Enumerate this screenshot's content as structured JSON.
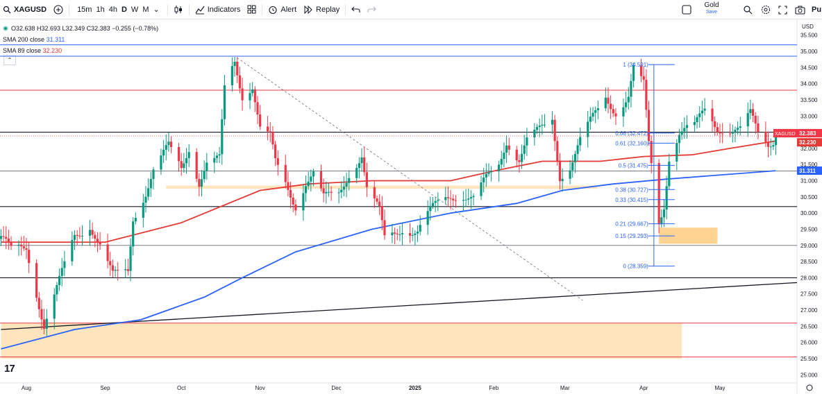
{
  "toolbar": {
    "symbol": "XAGUSD",
    "intervals": [
      "15m",
      "1h",
      "4h",
      "D",
      "W",
      "M"
    ],
    "active_interval": "D",
    "indicators_label": "Indicators",
    "alert_label": "Alert",
    "replay_label": "Replay",
    "gold_label": "Gold",
    "save_label": "Save",
    "publish_label": "Pu"
  },
  "legend": {
    "ohlc": "O32.638 H32.693 L32.349 C32.383 −0.255 (−0.78%)",
    "sma200_label": "SMA 200 close",
    "sma200_value": "31.311",
    "sma89_label": "SMA 89 close",
    "sma89_value": "32.230"
  },
  "colors": {
    "up": "#089981",
    "down": "#f23645",
    "sma200": "#2962ff",
    "sma89": "#e53935",
    "zone": "#ffe0b2",
    "zone_strong": "#ffcc80"
  },
  "chart_data": {
    "type": "candlestick",
    "symbol": "XAGUSD",
    "timeframe": "D",
    "currency_label": "USD",
    "ylim": [
      25.0,
      35.4
    ],
    "y_ticks": [
      "35.500",
      "35.000",
      "34.500",
      "34.000",
      "33.500",
      "33.000",
      "32.500",
      "32.000",
      "31.500",
      "31.000",
      "30.500",
      "30.000",
      "29.500",
      "29.000",
      "28.500",
      "28.000",
      "27.500",
      "27.000",
      "26.500",
      "26.000",
      "25.500",
      "25.000"
    ],
    "x_labels": [
      {
        "label": "Aug",
        "date": "2024-08-01"
      },
      {
        "label": "Sep",
        "date": "2024-09-01"
      },
      {
        "label": "Oct",
        "date": "2024-10-01"
      },
      {
        "label": "Nov",
        "date": "2024-11-01"
      },
      {
        "label": "Dec",
        "date": "2024-12-01"
      },
      {
        "label": "2025",
        "date": "2025-01-01"
      },
      {
        "label": "Feb",
        "date": "2025-02-01"
      },
      {
        "label": "Mar",
        "date": "2025-03-01"
      },
      {
        "label": "Apr",
        "date": "2025-04-01"
      },
      {
        "label": "May",
        "date": "2025-05-01"
      }
    ],
    "x_range": [
      "2024-07-22",
      "2025-06-07"
    ],
    "close_path": [
      [
        "2024-07-22",
        29.2
      ],
      [
        "2024-07-26",
        28.8
      ],
      [
        "2024-08-01",
        29.0
      ],
      [
        "2024-08-05",
        27.6
      ],
      [
        "2024-08-08",
        26.5
      ],
      [
        "2024-08-13",
        27.6
      ],
      [
        "2024-08-20",
        29.3
      ],
      [
        "2024-08-26",
        29.7
      ],
      [
        "2024-08-30",
        29.0
      ],
      [
        "2024-09-04",
        28.0
      ],
      [
        "2024-09-10",
        28.2
      ],
      [
        "2024-09-12",
        29.9
      ],
      [
        "2024-09-17",
        30.7
      ],
      [
        "2024-09-20",
        31.3
      ],
      [
        "2024-09-26",
        32.0
      ],
      [
        "2024-10-01",
        31.4
      ],
      [
        "2024-10-04",
        32.1
      ],
      [
        "2024-10-08",
        31.0
      ],
      [
        "2024-10-11",
        31.5
      ],
      [
        "2024-10-16",
        31.6
      ],
      [
        "2024-10-18",
        33.8
      ],
      [
        "2024-10-22",
        34.7
      ],
      [
        "2024-10-25",
        33.7
      ],
      [
        "2024-10-29",
        34.0
      ],
      [
        "2024-11-01",
        32.6
      ],
      [
        "2024-11-05",
        32.3
      ],
      [
        "2024-11-07",
        31.5
      ],
      [
        "2024-11-11",
        30.9
      ],
      [
        "2024-11-15",
        30.3
      ],
      [
        "2024-11-19",
        31.0
      ],
      [
        "2024-11-22",
        31.2
      ],
      [
        "2024-11-26",
        30.4
      ],
      [
        "2024-12-02",
        30.6
      ],
      [
        "2024-12-06",
        31.3
      ],
      [
        "2024-12-11",
        31.8
      ],
      [
        "2024-12-13",
        30.7
      ],
      [
        "2024-12-18",
        30.0
      ],
      [
        "2024-12-20",
        29.2
      ],
      [
        "2024-12-27",
        29.6
      ],
      [
        "2025-01-02",
        29.4
      ],
      [
        "2025-01-07",
        30.0
      ],
      [
        "2025-01-10",
        30.3
      ],
      [
        "2025-01-15",
        30.6
      ],
      [
        "2025-01-20",
        30.6
      ],
      [
        "2025-01-24",
        30.4
      ],
      [
        "2025-01-29",
        31.0
      ],
      [
        "2025-02-03",
        31.5
      ],
      [
        "2025-02-06",
        32.3
      ],
      [
        "2025-02-11",
        31.7
      ],
      [
        "2025-02-14",
        32.2
      ],
      [
        "2025-02-19",
        32.5
      ],
      [
        "2025-02-24",
        32.9
      ],
      [
        "2025-02-27",
        31.2
      ],
      [
        "2025-03-03",
        31.5
      ],
      [
        "2025-03-07",
        32.2
      ],
      [
        "2025-03-12",
        32.9
      ],
      [
        "2025-03-17",
        33.6
      ],
      [
        "2025-03-21",
        33.2
      ],
      [
        "2025-03-26",
        33.6
      ],
      [
        "2025-03-28",
        34.4
      ],
      [
        "2025-04-01",
        33.9
      ],
      [
        "2025-04-03",
        32.1
      ],
      [
        "2025-04-07",
        29.7
      ],
      [
        "2025-04-09",
        30.3
      ],
      [
        "2025-04-11",
        31.8
      ],
      [
        "2025-04-15",
        32.5
      ],
      [
        "2025-04-21",
        32.6
      ],
      [
        "2025-04-25",
        33.2
      ],
      [
        "2025-04-30",
        32.7
      ],
      [
        "2025-05-05",
        32.6
      ],
      [
        "2025-05-09",
        32.5
      ],
      [
        "2025-05-13",
        33.0
      ],
      [
        "2025-05-16",
        32.5
      ],
      [
        "2025-05-20",
        32.2
      ],
      [
        "2025-05-23",
        32.38
      ]
    ],
    "sma89_path": [
      [
        "2024-07-22",
        29.1
      ],
      [
        "2024-09-01",
        29.1
      ],
      [
        "2024-10-01",
        29.7
      ],
      [
        "2024-11-01",
        30.7
      ],
      [
        "2024-11-20",
        30.9
      ],
      [
        "2024-12-15",
        31.0
      ],
      [
        "2025-01-15",
        31.0
      ],
      [
        "2025-02-01",
        31.3
      ],
      [
        "2025-02-20",
        31.6
      ],
      [
        "2025-03-15",
        31.6
      ],
      [
        "2025-04-01",
        31.75
      ],
      [
        "2025-04-20",
        31.8
      ],
      [
        "2025-05-05",
        32.0
      ],
      [
        "2025-05-23",
        32.23
      ]
    ],
    "sma200_path": [
      [
        "2024-07-22",
        25.8
      ],
      [
        "2024-08-20",
        26.4
      ],
      [
        "2024-09-15",
        26.7
      ],
      [
        "2024-10-10",
        27.4
      ],
      [
        "2024-10-25",
        28.0
      ],
      [
        "2024-11-15",
        28.8
      ],
      [
        "2024-12-15",
        29.5
      ],
      [
        "2025-01-15",
        30.0
      ],
      [
        "2025-02-10",
        30.3
      ],
      [
        "2025-02-28",
        30.7
      ],
      [
        "2025-03-20",
        30.9
      ],
      [
        "2025-04-10",
        31.05
      ],
      [
        "2025-05-23",
        31.31
      ]
    ],
    "horizontal_lines": [
      {
        "price": 35.2,
        "color": "#2962ff",
        "width": 1
      },
      {
        "price": 34.85,
        "color": "#2962ff",
        "width": 1
      },
      {
        "price": 33.8,
        "color": "#f23645",
        "width": 1
      },
      {
        "price": 32.5,
        "color": "#131722",
        "width": 1.2
      },
      {
        "price": 31.3,
        "color": "#787b86",
        "width": 1
      },
      {
        "price": 30.2,
        "color": "#131722",
        "width": 1.2
      },
      {
        "price": 29.0,
        "color": "#787b86",
        "width": 1
      },
      {
        "price": 28.0,
        "color": "#131722",
        "width": 1.2
      },
      {
        "price": 26.6,
        "color": "#f23645",
        "width": 1
      },
      {
        "price": 25.55,
        "color": "#f23645",
        "width": 1
      }
    ],
    "trendline": {
      "x0": "2024-07-22",
      "y0": 26.4,
      "x1": "2025-06-07",
      "y1": 27.85
    },
    "dashed_trendline": {
      "x0": "2024-10-23",
      "y0": 34.8,
      "x1": "2025-03-08",
      "y1": 27.3
    },
    "zones": [
      {
        "x0": "2024-07-22",
        "x1": "2025-04-16",
        "y0": 25.5,
        "y1": 26.6,
        "color": "#ffe0b2"
      },
      {
        "x0": "2024-09-25",
        "x1": "2025-03-14",
        "y0": 30.75,
        "y1": 30.85,
        "color": "#ffe0b2"
      },
      {
        "x0": "2025-04-07",
        "x1": "2025-04-30",
        "y0": 29.05,
        "y1": 29.55,
        "color": "#ffcc80"
      }
    ],
    "fib_levels": [
      {
        "label": "1 (34.591)",
        "price": 34.591
      },
      {
        "label": "0.66 (32.472)",
        "price": 32.472
      },
      {
        "label": "0.61 (32.160)",
        "price": 32.16
      },
      {
        "label": "0.5 (31.475)",
        "price": 31.475
      },
      {
        "label": "0.38 (30.727)",
        "price": 30.727
      },
      {
        "label": "0.33 (30.415)",
        "price": 30.415
      },
      {
        "label": "0.21 (29.667)",
        "price": 29.667
      },
      {
        "label": "0.15 (29.293)",
        "price": 29.293
      },
      {
        "label": "0 (28.359)",
        "price": 28.359
      }
    ],
    "fib_x": [
      "2025-03-18",
      "2025-04-05"
    ],
    "price_tags": [
      {
        "label": "XAGUSD",
        "value": "32.383",
        "color": "#f23645"
      },
      {
        "value": "32.230",
        "color": "#e53935"
      },
      {
        "value": "31.311",
        "color": "#2962ff"
      }
    ],
    "last_price": 32.383
  }
}
